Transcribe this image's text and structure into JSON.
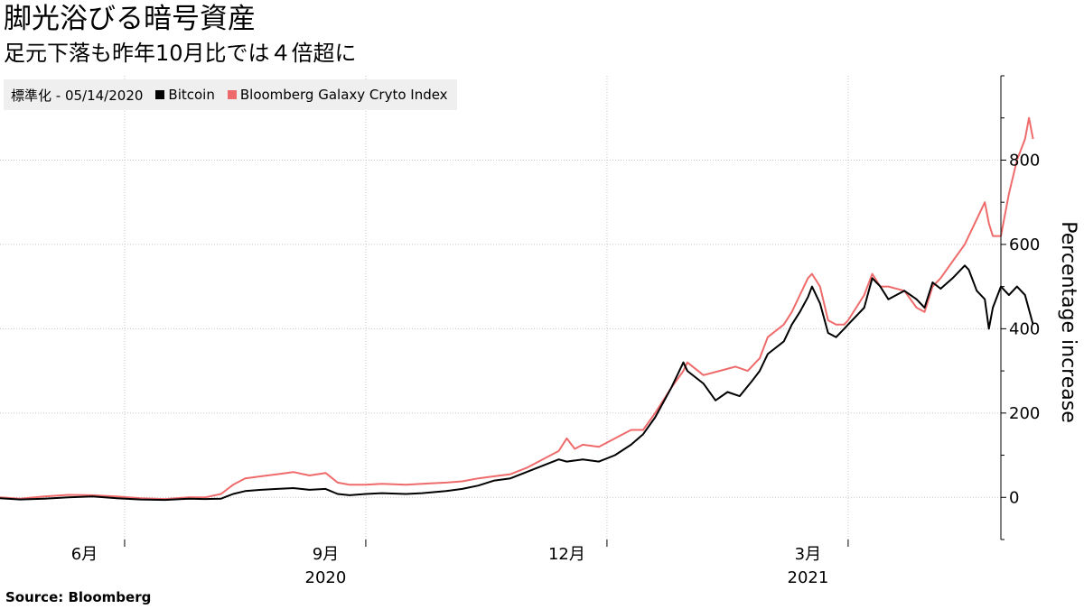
{
  "header": {
    "title": "脚光浴びる暗号資産",
    "subtitle": "足元下落も昨年10月比では４倍超に"
  },
  "legend": {
    "note": "標準化 - 05/14/2020",
    "items": [
      {
        "label": "Bitcoin",
        "color": "#000000"
      },
      {
        "label": "Bloomberg Galaxy Cryto Index",
        "color": "#ef6b6b"
      }
    ]
  },
  "source": "Source:  Bloomberg",
  "chart_data": {
    "type": "line",
    "title": "脚光浴びる暗号資産",
    "subtitle": "足元下落も昨年10月比では４倍超に",
    "ylabel": "Percentage increase",
    "xlabel": "",
    "ylim": [
      -100,
      1000
    ],
    "yticks": [
      0,
      200,
      400,
      600,
      800
    ],
    "grid": true,
    "legend_position": "top-left",
    "x_ticks": [
      {
        "label": "6月",
        "x": 0.5
      },
      {
        "label": "9月",
        "x": 3.5
      },
      {
        "label": "12月",
        "x": 6.5
      },
      {
        "label": "3月",
        "x": 9.5
      }
    ],
    "year_labels": [
      {
        "label": "2020",
        "x": 3.5
      },
      {
        "label": "2021",
        "x": 9.5
      }
    ],
    "month_boundaries": [
      1,
      4,
      7,
      10
    ],
    "x_range": [
      -0.55,
      11.9
    ],
    "series": [
      {
        "name": "Bitcoin",
        "color": "#000000",
        "points": [
          [
            -0.55,
            -2
          ],
          [
            -0.3,
            -5
          ],
          [
            0.0,
            -3
          ],
          [
            0.3,
            0
          ],
          [
            0.6,
            2
          ],
          [
            0.9,
            -2
          ],
          [
            1.2,
            -5
          ],
          [
            1.5,
            -6
          ],
          [
            1.8,
            -3
          ],
          [
            2.0,
            -4
          ],
          [
            2.2,
            -3
          ],
          [
            2.35,
            8
          ],
          [
            2.5,
            15
          ],
          [
            2.7,
            18
          ],
          [
            2.9,
            20
          ],
          [
            3.1,
            22
          ],
          [
            3.3,
            18
          ],
          [
            3.5,
            20
          ],
          [
            3.65,
            8
          ],
          [
            3.8,
            5
          ],
          [
            4.0,
            8
          ],
          [
            4.2,
            10
          ],
          [
            4.5,
            8
          ],
          [
            4.7,
            10
          ],
          [
            5.0,
            15
          ],
          [
            5.2,
            20
          ],
          [
            5.4,
            28
          ],
          [
            5.6,
            40
          ],
          [
            5.8,
            45
          ],
          [
            6.0,
            60
          ],
          [
            6.2,
            75
          ],
          [
            6.4,
            90
          ],
          [
            6.5,
            85
          ],
          [
            6.7,
            90
          ],
          [
            6.9,
            85
          ],
          [
            7.1,
            100
          ],
          [
            7.3,
            125
          ],
          [
            7.45,
            150
          ],
          [
            7.6,
            190
          ],
          [
            7.8,
            260
          ],
          [
            7.95,
            320
          ],
          [
            8.0,
            300
          ],
          [
            8.2,
            270
          ],
          [
            8.35,
            230
          ],
          [
            8.5,
            250
          ],
          [
            8.65,
            240
          ],
          [
            8.8,
            275
          ],
          [
            8.9,
            300
          ],
          [
            9.0,
            340
          ],
          [
            9.2,
            370
          ],
          [
            9.3,
            410
          ],
          [
            9.4,
            440
          ],
          [
            9.5,
            475
          ],
          [
            9.55,
            500
          ],
          [
            9.65,
            460
          ],
          [
            9.75,
            390
          ],
          [
            9.85,
            380
          ],
          [
            9.95,
            400
          ],
          [
            10.0,
            410
          ],
          [
            10.2,
            450
          ],
          [
            10.3,
            520
          ],
          [
            10.4,
            500
          ],
          [
            10.5,
            470
          ],
          [
            10.7,
            490
          ],
          [
            10.85,
            470
          ],
          [
            10.95,
            450
          ],
          [
            11.05,
            510
          ],
          [
            11.15,
            495
          ],
          [
            11.3,
            520
          ],
          [
            11.45,
            550
          ],
          [
            11.5,
            540
          ],
          [
            11.6,
            490
          ],
          [
            11.7,
            470
          ],
          [
            11.75,
            400
          ],
          [
            11.8,
            450
          ],
          [
            11.9,
            500
          ],
          [
            12.0,
            480
          ],
          [
            12.1,
            500
          ],
          [
            12.2,
            480
          ],
          [
            12.3,
            410
          ]
        ]
      },
      {
        "name": "Bloomberg Galaxy Cryto Index",
        "color": "#ef6b6b",
        "points": [
          [
            -0.55,
            0
          ],
          [
            -0.3,
            -3
          ],
          [
            0.0,
            2
          ],
          [
            0.3,
            6
          ],
          [
            0.6,
            5
          ],
          [
            0.9,
            2
          ],
          [
            1.2,
            -2
          ],
          [
            1.5,
            -4
          ],
          [
            1.8,
            0
          ],
          [
            2.0,
            0
          ],
          [
            2.2,
            8
          ],
          [
            2.35,
            30
          ],
          [
            2.5,
            45
          ],
          [
            2.7,
            50
          ],
          [
            2.9,
            55
          ],
          [
            3.1,
            60
          ],
          [
            3.3,
            52
          ],
          [
            3.5,
            58
          ],
          [
            3.65,
            35
          ],
          [
            3.8,
            30
          ],
          [
            4.0,
            30
          ],
          [
            4.2,
            32
          ],
          [
            4.5,
            30
          ],
          [
            4.7,
            32
          ],
          [
            5.0,
            35
          ],
          [
            5.2,
            38
          ],
          [
            5.4,
            45
          ],
          [
            5.6,
            50
          ],
          [
            5.8,
            55
          ],
          [
            6.0,
            70
          ],
          [
            6.2,
            90
          ],
          [
            6.4,
            110
          ],
          [
            6.5,
            140
          ],
          [
            6.6,
            115
          ],
          [
            6.7,
            125
          ],
          [
            6.9,
            120
          ],
          [
            7.1,
            140
          ],
          [
            7.3,
            160
          ],
          [
            7.45,
            160
          ],
          [
            7.6,
            200
          ],
          [
            7.8,
            260
          ],
          [
            7.95,
            300
          ],
          [
            8.0,
            320
          ],
          [
            8.2,
            290
          ],
          [
            8.4,
            300
          ],
          [
            8.6,
            310
          ],
          [
            8.75,
            300
          ],
          [
            8.9,
            330
          ],
          [
            9.0,
            380
          ],
          [
            9.2,
            410
          ],
          [
            9.3,
            440
          ],
          [
            9.4,
            480
          ],
          [
            9.5,
            520
          ],
          [
            9.55,
            530
          ],
          [
            9.65,
            500
          ],
          [
            9.75,
            420
          ],
          [
            9.85,
            410
          ],
          [
            9.95,
            410
          ],
          [
            10.0,
            420
          ],
          [
            10.2,
            480
          ],
          [
            10.3,
            530
          ],
          [
            10.4,
            500
          ],
          [
            10.5,
            500
          ],
          [
            10.7,
            490
          ],
          [
            10.85,
            450
          ],
          [
            10.95,
            440
          ],
          [
            11.05,
            500
          ],
          [
            11.15,
            520
          ],
          [
            11.3,
            560
          ],
          [
            11.45,
            600
          ],
          [
            11.5,
            620
          ],
          [
            11.6,
            660
          ],
          [
            11.7,
            700
          ],
          [
            11.75,
            650
          ],
          [
            11.8,
            620
          ],
          [
            11.9,
            620
          ],
          [
            12.0,
            720
          ],
          [
            12.1,
            800
          ],
          [
            12.2,
            850
          ],
          [
            12.25,
            900
          ],
          [
            12.3,
            850
          ]
        ]
      }
    ]
  }
}
